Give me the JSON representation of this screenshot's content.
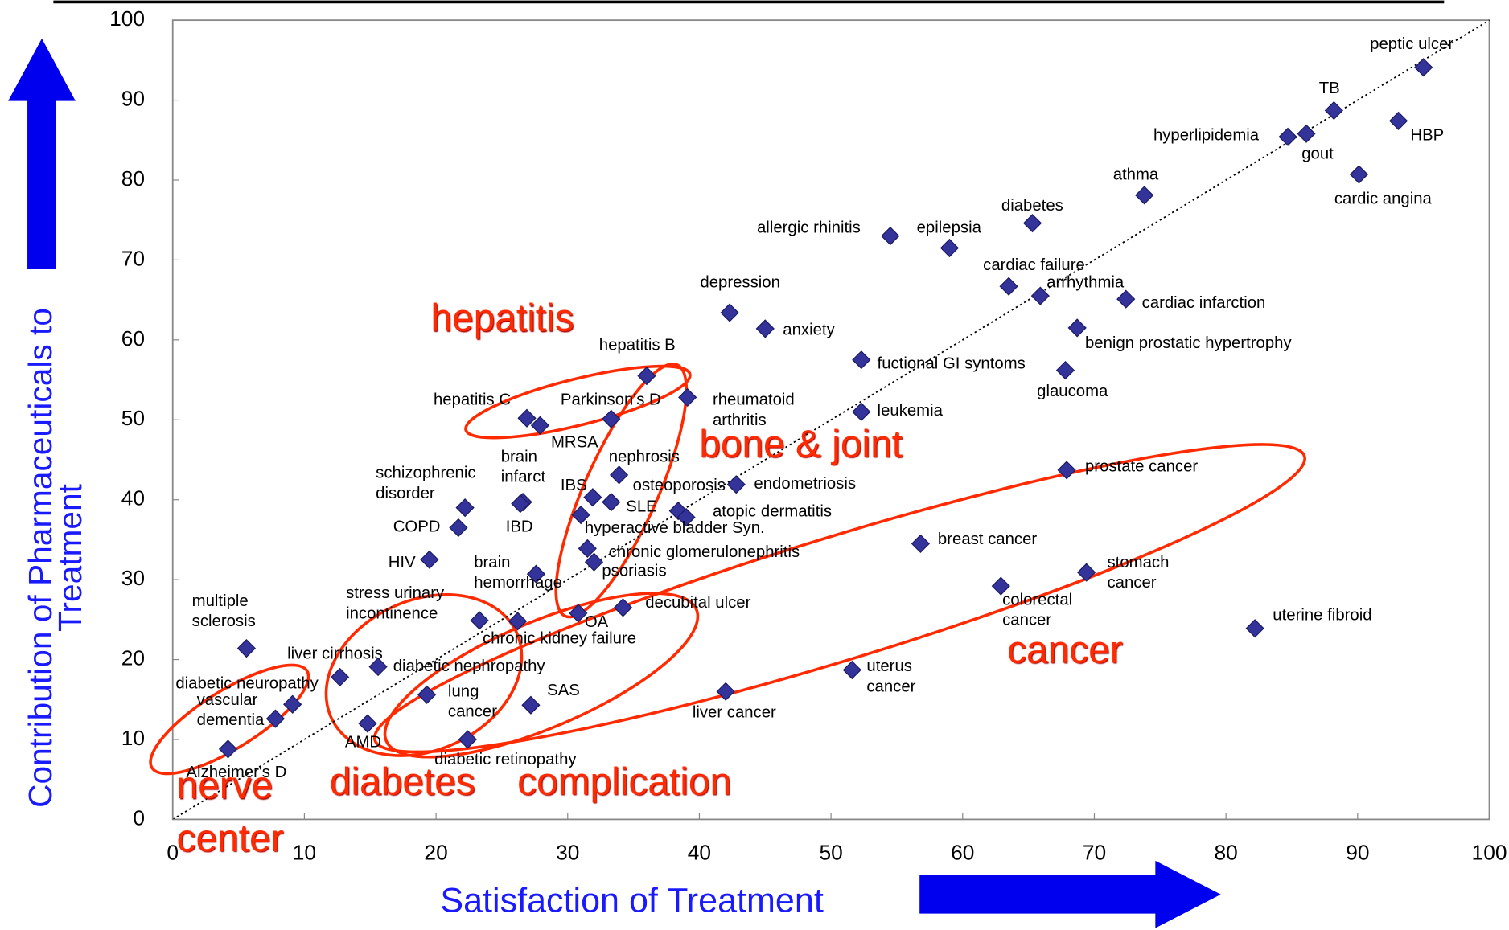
{
  "chart_data": {
    "type": "scatter",
    "xlabel": "Satisfaction of Treatment",
    "ylabel": "Contribution of Pharmaceuticals to Treatment",
    "labels": [
      "peptic ulcer",
      "TB",
      "hyperlipidemia",
      "gout",
      "HBP",
      "cardic angina",
      "athma",
      "diabetes",
      "epilepsia",
      "allergic rhinitis",
      "cardiac failure",
      "arrhythmia",
      "cardiac infarction",
      "benign prostatic hypertrophy",
      "glaucoma",
      "depression",
      "anxiety",
      "fuctional GI syntoms",
      "leukemia",
      "hepatitis B",
      "rheumatoid arthritis",
      "Parkinson's D",
      "hepatitis C",
      "MRSA",
      "nephrosis",
      "endometriosis",
      "IBS",
      "SLE",
      "osteoporosis",
      "atopic dermatitis",
      "hyperactive bladder Syn.",
      "brain infarct",
      "IBD",
      "schizophrenic disorder",
      "COPD",
      "HIV",
      "chronic glomerulonephritis",
      "psoriasis",
      "brain hemorrhage",
      "OA",
      "decubital ulcer",
      "chronic kidney failure",
      "stress urinary incontinence",
      "multiple sclerosis",
      "liver cirrhosis",
      "diabetic nephropathy",
      "diabetic neuropathy",
      "vascular dementia",
      "Alzheimer's D",
      "AMD",
      "lung cancer",
      "SAS",
      "diabetic retinopathy",
      "liver cancer",
      "uterus cancer",
      "breast cancer",
      "colorectal cancer",
      "stomach cancer",
      "prostate cancer",
      "uterine fibroid"
    ],
    "x": [
      95.0,
      88.2,
      84.7,
      86.1,
      93.1,
      90.1,
      73.8,
      65.3,
      59.0,
      54.5,
      63.5,
      65.9,
      72.4,
      68.7,
      67.8,
      42.3,
      45.0,
      52.3,
      52.3,
      36.0,
      39.1,
      33.3,
      26.9,
      27.9,
      33.9,
      42.8,
      31.9,
      33.3,
      38.4,
      39.0,
      31.0,
      26.6,
      26.4,
      22.2,
      21.7,
      19.5,
      31.5,
      32.0,
      27.6,
      30.8,
      34.2,
      26.2,
      23.3,
      5.6,
      12.7,
      15.6,
      9.1,
      7.8,
      4.2,
      14.8,
      19.3,
      27.2,
      22.4,
      42.0,
      51.6,
      56.8,
      62.9,
      69.4,
      67.9,
      82.2
    ],
    "values": [
      94.1,
      88.7,
      85.4,
      85.8,
      87.4,
      80.7,
      78.1,
      74.6,
      71.5,
      73.0,
      66.7,
      65.5,
      65.1,
      61.5,
      56.2,
      63.4,
      61.4,
      57.5,
      51.0,
      55.5,
      52.8,
      50.1,
      50.2,
      49.3,
      43.1,
      41.9,
      40.3,
      39.7,
      38.6,
      37.8,
      38.1,
      39.7,
      39.5,
      39.0,
      36.5,
      32.5,
      33.9,
      32.2,
      30.7,
      25.8,
      26.5,
      24.8,
      24.9,
      21.4,
      17.8,
      19.1,
      14.4,
      12.6,
      8.8,
      12.0,
      15.6,
      14.3,
      10.0,
      16.0,
      18.7,
      34.5,
      29.2,
      30.9,
      43.7,
      23.9
    ],
    "color": "#333399",
    "xlim": [
      0,
      100
    ],
    "ylim": [
      0,
      100
    ],
    "xticks": [
      0,
      10,
      20,
      30,
      40,
      50,
      60,
      70,
      80,
      90,
      100
    ],
    "yticks": [
      0,
      10,
      20,
      30,
      40,
      50,
      60,
      70,
      80,
      90,
      100
    ],
    "annotations": [
      "hepatitis",
      "bone & joint",
      "cancer",
      "nerve center",
      "diabetes",
      "complication"
    ]
  }
}
